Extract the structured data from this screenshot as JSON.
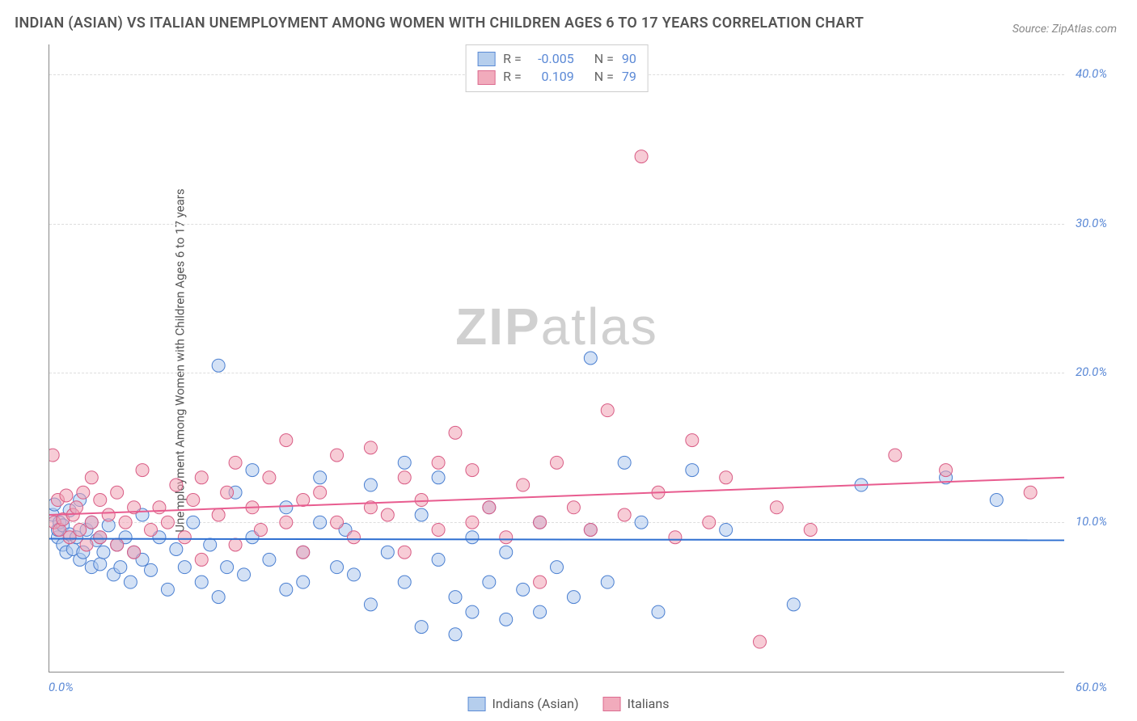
{
  "title": "INDIAN (ASIAN) VS ITALIAN UNEMPLOYMENT AMONG WOMEN WITH CHILDREN AGES 6 TO 17 YEARS CORRELATION CHART",
  "source": "Source: ZipAtlas.com",
  "ylabel": "Unemployment Among Women with Children Ages 6 to 17 years",
  "watermark_bold": "ZIP",
  "watermark_rest": "atlas",
  "chart": {
    "type": "scatter",
    "xlim": [
      0,
      60
    ],
    "ylim": [
      0,
      42
    ],
    "xticks": [
      {
        "v": 0,
        "label": "0.0%"
      },
      {
        "v": 60,
        "label": "60.0%"
      }
    ],
    "yticks": [
      {
        "v": 10,
        "label": "10.0%"
      },
      {
        "v": 20,
        "label": "20.0%"
      },
      {
        "v": 30,
        "label": "30.0%"
      },
      {
        "v": 40,
        "label": "40.0%"
      }
    ],
    "series": [
      {
        "name": "Indians (Asian)",
        "label": "Indians (Asian)",
        "fill": "#aec9ec",
        "fill_opacity": 0.55,
        "stroke": "#4a7fd1",
        "line_color": "#2e6fd1",
        "line_width": 2,
        "r_value": "-0.005",
        "n_value": "90",
        "trend": {
          "y_at_xmin": 8.9,
          "y_at_xmax": 8.8
        },
        "points": [
          [
            0.2,
            10.5
          ],
          [
            0.3,
            11.2
          ],
          [
            0.5,
            9.0
          ],
          [
            0.5,
            9.5
          ],
          [
            0.6,
            10.0
          ],
          [
            0.8,
            8.5
          ],
          [
            0.8,
            9.8
          ],
          [
            1.0,
            8.0
          ],
          [
            1.2,
            9.2
          ],
          [
            1.2,
            10.8
          ],
          [
            1.4,
            8.2
          ],
          [
            1.6,
            9.0
          ],
          [
            1.8,
            7.5
          ],
          [
            1.8,
            11.5
          ],
          [
            2.0,
            8.0
          ],
          [
            2.2,
            9.5
          ],
          [
            2.5,
            7.0
          ],
          [
            2.5,
            10.0
          ],
          [
            2.8,
            8.8
          ],
          [
            3.0,
            7.2
          ],
          [
            3.0,
            9.0
          ],
          [
            3.2,
            8.0
          ],
          [
            3.5,
            9.8
          ],
          [
            3.8,
            6.5
          ],
          [
            4.0,
            8.5
          ],
          [
            4.2,
            7.0
          ],
          [
            4.5,
            9.0
          ],
          [
            4.8,
            6.0
          ],
          [
            5.0,
            8.0
          ],
          [
            5.5,
            7.5
          ],
          [
            5.5,
            10.5
          ],
          [
            6.0,
            6.8
          ],
          [
            6.5,
            9.0
          ],
          [
            7.0,
            5.5
          ],
          [
            7.5,
            8.2
          ],
          [
            8.0,
            7.0
          ],
          [
            8.5,
            10.0
          ],
          [
            9.0,
            6.0
          ],
          [
            9.5,
            8.5
          ],
          [
            10.0,
            5.0
          ],
          [
            10.0,
            20.5
          ],
          [
            10.5,
            7.0
          ],
          [
            11.0,
            12.0
          ],
          [
            11.5,
            6.5
          ],
          [
            12.0,
            9.0
          ],
          [
            12.0,
            13.5
          ],
          [
            13.0,
            7.5
          ],
          [
            14.0,
            5.5
          ],
          [
            14.0,
            11.0
          ],
          [
            15.0,
            8.0
          ],
          [
            15.0,
            6.0
          ],
          [
            16.0,
            10.0
          ],
          [
            16.0,
            13.0
          ],
          [
            17.0,
            7.0
          ],
          [
            17.5,
            9.5
          ],
          [
            18.0,
            6.5
          ],
          [
            19.0,
            12.5
          ],
          [
            19.0,
            4.5
          ],
          [
            20.0,
            8.0
          ],
          [
            21.0,
            14.0
          ],
          [
            21.0,
            6.0
          ],
          [
            22.0,
            10.5
          ],
          [
            22.0,
            3.0
          ],
          [
            23.0,
            7.5
          ],
          [
            23.0,
            13.0
          ],
          [
            24.0,
            5.0
          ],
          [
            24.0,
            2.5
          ],
          [
            25.0,
            9.0
          ],
          [
            25.0,
            4.0
          ],
          [
            26.0,
            11.0
          ],
          [
            26.0,
            6.0
          ],
          [
            27.0,
            3.5
          ],
          [
            27.0,
            8.0
          ],
          [
            28.0,
            5.5
          ],
          [
            29.0,
            10.0
          ],
          [
            29.0,
            4.0
          ],
          [
            30.0,
            7.0
          ],
          [
            31.0,
            5.0
          ],
          [
            32.0,
            21.0
          ],
          [
            32.0,
            9.5
          ],
          [
            33.0,
            6.0
          ],
          [
            34.0,
            14.0
          ],
          [
            35.0,
            10.0
          ],
          [
            36.0,
            4.0
          ],
          [
            38.0,
            13.5
          ],
          [
            40.0,
            9.5
          ],
          [
            44.0,
            4.5
          ],
          [
            48.0,
            12.5
          ],
          [
            53.0,
            13.0
          ],
          [
            56.0,
            11.5
          ]
        ]
      },
      {
        "name": "Italians",
        "label": "Italians",
        "fill": "#f0a3b5",
        "fill_opacity": 0.55,
        "stroke": "#d95c85",
        "line_color": "#e85c8f",
        "line_width": 2,
        "r_value": "0.109",
        "n_value": "79",
        "trend": {
          "y_at_xmin": 10.5,
          "y_at_xmax": 13.0
        },
        "points": [
          [
            0.2,
            14.5
          ],
          [
            0.3,
            10.0
          ],
          [
            0.5,
            11.5
          ],
          [
            0.6,
            9.5
          ],
          [
            0.8,
            10.2
          ],
          [
            1.0,
            11.8
          ],
          [
            1.2,
            9.0
          ],
          [
            1.4,
            10.5
          ],
          [
            1.6,
            11.0
          ],
          [
            1.8,
            9.5
          ],
          [
            2.0,
            12.0
          ],
          [
            2.2,
            8.5
          ],
          [
            2.5,
            10.0
          ],
          [
            2.5,
            13.0
          ],
          [
            3.0,
            9.0
          ],
          [
            3.0,
            11.5
          ],
          [
            3.5,
            10.5
          ],
          [
            4.0,
            8.5
          ],
          [
            4.0,
            12.0
          ],
          [
            4.5,
            10.0
          ],
          [
            5.0,
            11.0
          ],
          [
            5.0,
            8.0
          ],
          [
            5.5,
            13.5
          ],
          [
            6.0,
            9.5
          ],
          [
            6.5,
            11.0
          ],
          [
            7.0,
            10.0
          ],
          [
            7.5,
            12.5
          ],
          [
            8.0,
            9.0
          ],
          [
            8.5,
            11.5
          ],
          [
            9.0,
            13.0
          ],
          [
            9.0,
            7.5
          ],
          [
            10.0,
            10.5
          ],
          [
            10.5,
            12.0
          ],
          [
            11.0,
            8.5
          ],
          [
            11.0,
            14.0
          ],
          [
            12.0,
            11.0
          ],
          [
            12.5,
            9.5
          ],
          [
            13.0,
            13.0
          ],
          [
            14.0,
            10.0
          ],
          [
            14.0,
            15.5
          ],
          [
            15.0,
            11.5
          ],
          [
            15.0,
            8.0
          ],
          [
            16.0,
            12.0
          ],
          [
            17.0,
            10.0
          ],
          [
            17.0,
            14.5
          ],
          [
            18.0,
            9.0
          ],
          [
            19.0,
            11.0
          ],
          [
            19.0,
            15.0
          ],
          [
            20.0,
            10.5
          ],
          [
            21.0,
            13.0
          ],
          [
            21.0,
            8.0
          ],
          [
            22.0,
            11.5
          ],
          [
            23.0,
            14.0
          ],
          [
            23.0,
            9.5
          ],
          [
            24.0,
            16.0
          ],
          [
            25.0,
            10.0
          ],
          [
            25.0,
            13.5
          ],
          [
            26.0,
            11.0
          ],
          [
            27.0,
            9.0
          ],
          [
            28.0,
            12.5
          ],
          [
            29.0,
            10.0
          ],
          [
            29.0,
            6.0
          ],
          [
            30.0,
            14.0
          ],
          [
            31.0,
            11.0
          ],
          [
            32.0,
            9.5
          ],
          [
            33.0,
            17.5
          ],
          [
            34.0,
            10.5
          ],
          [
            35.0,
            34.5
          ],
          [
            36.0,
            12.0
          ],
          [
            37.0,
            9.0
          ],
          [
            38.0,
            15.5
          ],
          [
            39.0,
            10.0
          ],
          [
            40.0,
            13.0
          ],
          [
            42.0,
            2.0
          ],
          [
            43.0,
            11.0
          ],
          [
            45.0,
            9.5
          ],
          [
            50.0,
            14.5
          ],
          [
            53.0,
            13.5
          ],
          [
            58.0,
            12.0
          ]
        ]
      }
    ]
  },
  "background_color": "#ffffff",
  "grid_color": "#dddddd",
  "axis_color": "#888888",
  "label_color": "#5b89d6",
  "marker_radius": 8
}
